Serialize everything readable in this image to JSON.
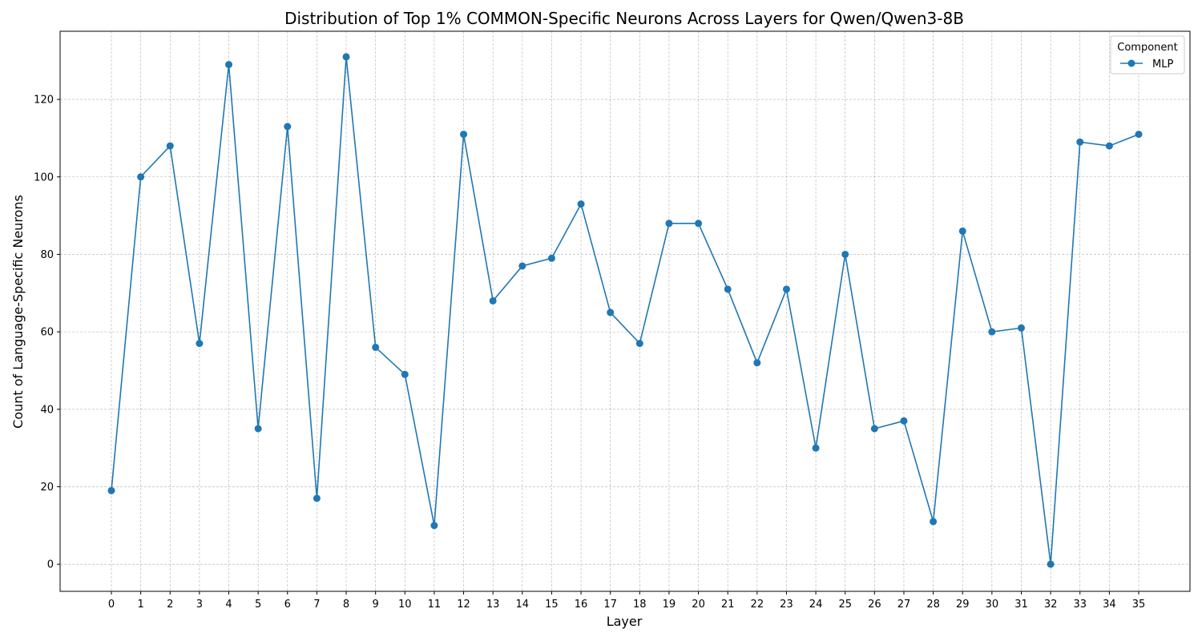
{
  "chart_data": {
    "type": "line",
    "title": "Distribution of Top 1% COMMON-Specific Neurons Across Layers for Qwen/Qwen3-8B",
    "xlabel": "Layer",
    "ylabel": "Count of Language-Specific Neurons",
    "x": [
      0,
      1,
      2,
      3,
      4,
      5,
      6,
      7,
      8,
      9,
      10,
      11,
      12,
      13,
      14,
      15,
      16,
      17,
      18,
      19,
      20,
      21,
      22,
      23,
      24,
      25,
      26,
      27,
      28,
      29,
      30,
      31,
      32,
      33,
      34,
      35
    ],
    "series": [
      {
        "name": "MLP",
        "color": "#1f77b4",
        "values": [
          19,
          100,
          108,
          57,
          129,
          35,
          113,
          17,
          131,
          56,
          49,
          10,
          111,
          68,
          77,
          79,
          93,
          65,
          57,
          88,
          88,
          71,
          52,
          71,
          30,
          80,
          35,
          37,
          11,
          86,
          60,
          61,
          0,
          109,
          108,
          111
        ]
      }
    ],
    "ylim": [
      -7,
      137.6
    ],
    "yticks": [
      0,
      20,
      40,
      60,
      80,
      100,
      120
    ],
    "grid": true,
    "legend": {
      "title": "Component",
      "placement": "top-right"
    }
  }
}
